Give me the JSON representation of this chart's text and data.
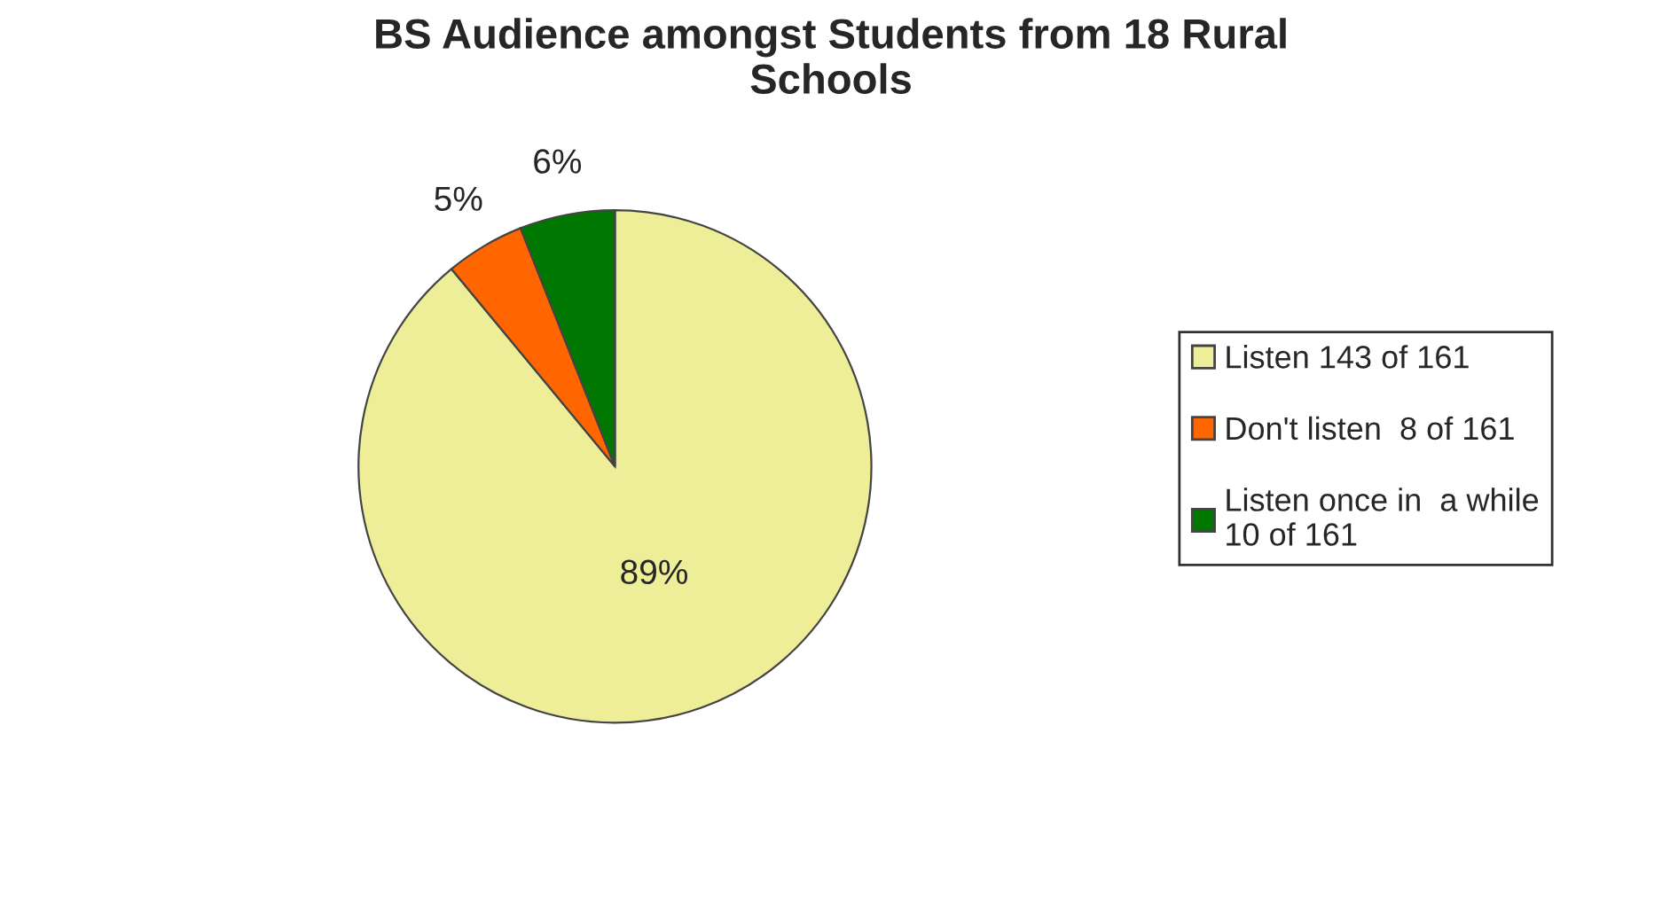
{
  "chart_data": {
    "type": "pie",
    "title": "BS Audience amongst Students from 18 Rural\nSchools",
    "categories": [
      "Listen 143 of 161",
      "Don't listen  8 of 161",
      "Listen once in  a while\n10 of 161"
    ],
    "values": [
      89,
      5,
      6
    ],
    "value_labels": [
      "89%",
      "5%",
      "6%"
    ],
    "colors": [
      "#eeee99",
      "#ff6600",
      "#007700"
    ],
    "legend": "right"
  }
}
